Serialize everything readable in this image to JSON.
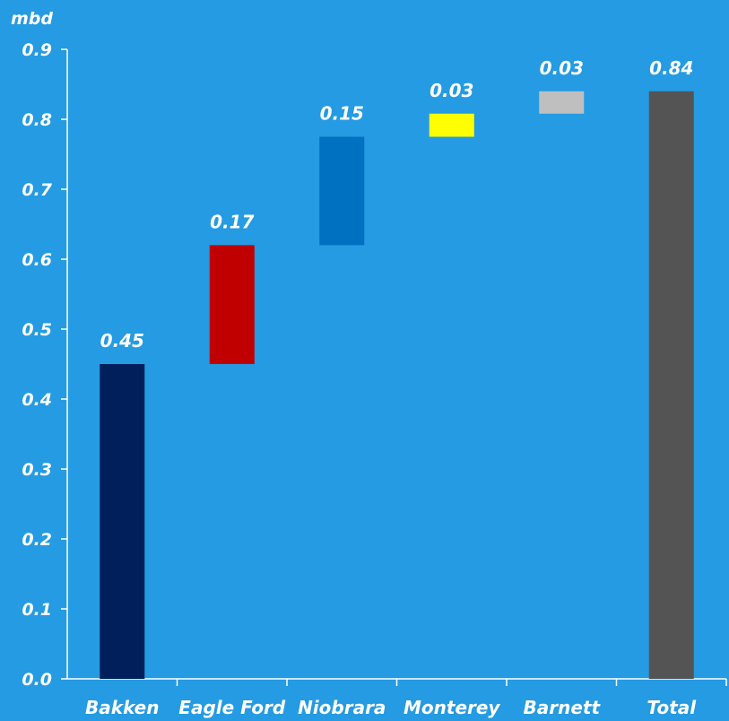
{
  "chart_data": {
    "type": "bar",
    "subtype": "waterfall",
    "unit_label": "mbd",
    "categories": [
      "Bakken",
      "Eagle Ford",
      "Niobrara",
      "Monterey",
      "Barnett",
      "Total"
    ],
    "bars": [
      {
        "category": "Bakken",
        "base": 0.0,
        "value": 0.45,
        "label": "0.45",
        "color": "#001f5b"
      },
      {
        "category": "Eagle Ford",
        "base": 0.45,
        "value": 0.17,
        "label": "0.17",
        "color": "#c00000"
      },
      {
        "category": "Niobrara",
        "base": 0.62,
        "value": 0.155,
        "label": "0.15",
        "color": "#0070c0"
      },
      {
        "category": "Monterey",
        "base": 0.775,
        "value": 0.033,
        "label": "0.03",
        "color": "#ffff00"
      },
      {
        "category": "Barnett",
        "base": 0.808,
        "value": 0.032,
        "label": "0.03",
        "color": "#bfbfbf"
      },
      {
        "category": "Total",
        "base": 0.0,
        "value": 0.84,
        "label": "0.84",
        "color": "#545454"
      }
    ],
    "y_ticks": [
      "0.0",
      "0.1",
      "0.2",
      "0.3",
      "0.4",
      "0.5",
      "0.6",
      "0.7",
      "0.8",
      "0.9"
    ],
    "ylim": [
      0,
      0.9
    ],
    "grid": false,
    "legend": "none",
    "background": "#249be2",
    "axis_color": "#ffffff"
  }
}
